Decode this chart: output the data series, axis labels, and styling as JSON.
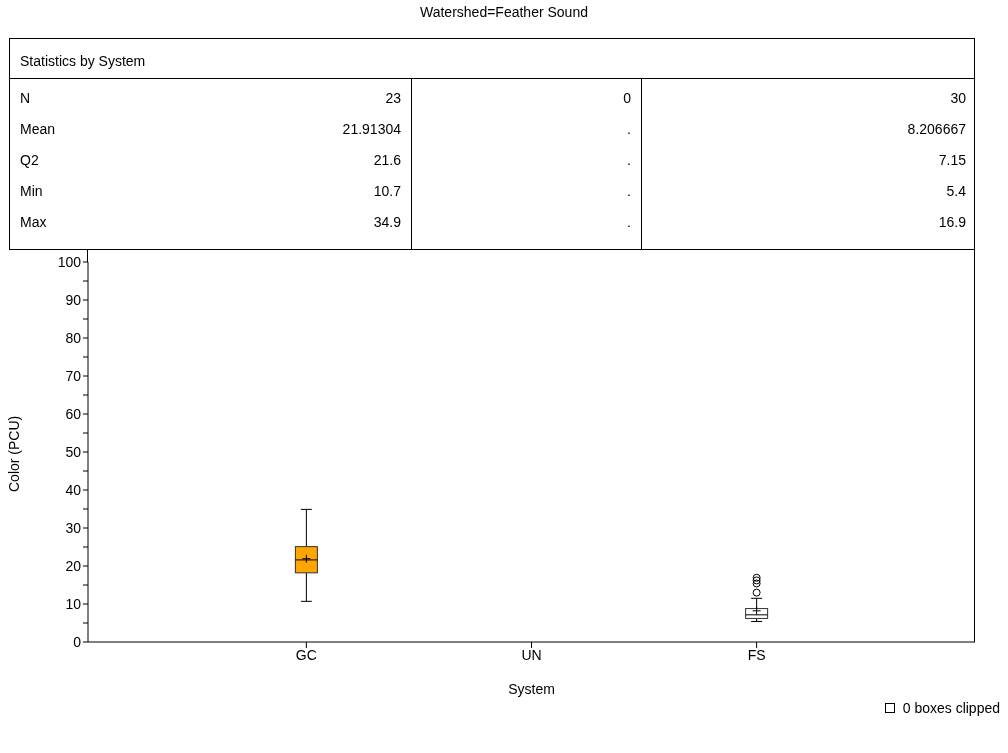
{
  "chart_data": {
    "type": "box",
    "title": "Watershed=Feather Sound",
    "xlabel": "System",
    "ylabel": "Color (PCU)",
    "categories": [
      "GC",
      "UN",
      "FS"
    ],
    "colors": [
      "#ffa500",
      null,
      "#ffffff"
    ],
    "boxes": [
      {
        "low": 10.7,
        "q1": 18.2,
        "median": 21.6,
        "q3": 25.1,
        "high": 34.9,
        "mean": 21.91304
      },
      null,
      {
        "low": 5.4,
        "q1": 6.2,
        "median": 7.15,
        "q3": 8.8,
        "high": 11.5,
        "mean": 8.206667,
        "outliers": [
          13,
          15.4,
          16.2,
          16.9
        ]
      }
    ],
    "ylim": [
      0,
      100
    ],
    "yticks": [
      0,
      {
        "value": 5,
        "label": null
      },
      10,
      {
        "value": 15,
        "label": null
      },
      20,
      {
        "value": 25,
        "label": null
      },
      30,
      {
        "value": 35,
        "label": null
      },
      40,
      {
        "value": 45,
        "label": null
      },
      50,
      {
        "value": 55,
        "label": null
      },
      60,
      {
        "value": 65,
        "label": null
      },
      70,
      {
        "value": 75,
        "label": null
      },
      80,
      {
        "value": 85,
        "label": null
      },
      90,
      {
        "value": 95,
        "label": null
      },
      100
    ],
    "annotations": [
      "Statistics by System",
      "N",
      "23",
      "0",
      "30",
      "Mean",
      "21.91304",
      ".",
      "8.206667",
      "Q2",
      "21.6",
      ".",
      "7.15",
      "Min",
      "10.7",
      ".",
      "5.4",
      "Max",
      "34.9",
      ".",
      "16.9",
      "0 boxes clipped"
    ]
  }
}
